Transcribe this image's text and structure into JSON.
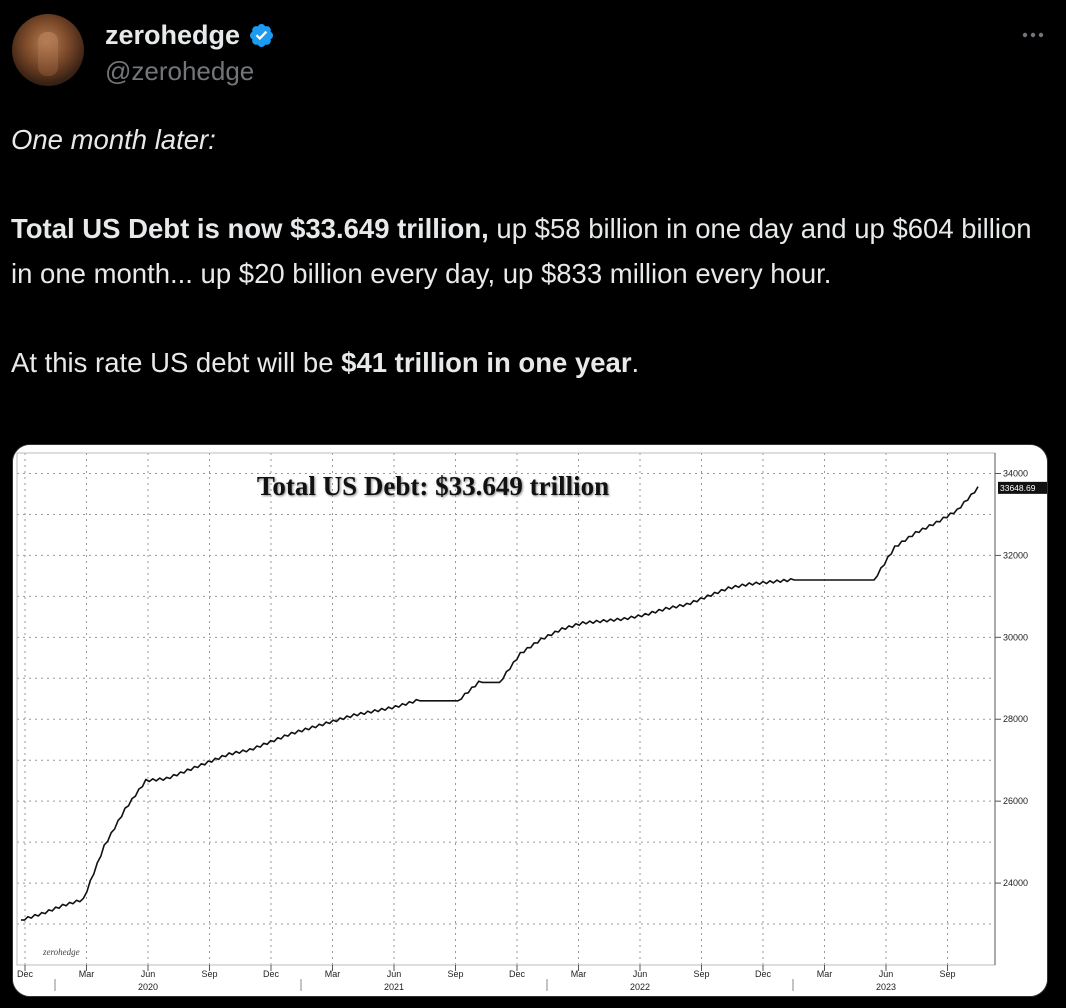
{
  "author": {
    "display_name": "zerohedge",
    "handle": "@zerohedge",
    "verified": true,
    "verified_color": "#1d9bf0",
    "more_icon": "more-horizontal-icon"
  },
  "tweet": {
    "line1": "One month later:",
    "para2_bold": "Total US Debt is now $33.649 trillion,",
    "para2_rest": " up $58 billion in one day and up $604 billion in one month... up $20 billion every day, up $833 million every hour.",
    "para3_start": "At this rate US debt will be ",
    "para3_bold": "$41 trillion in one year",
    "para3_end": "."
  },
  "chart_data": {
    "type": "line",
    "title": "Total US Debt: $33.649 trillion",
    "watermark": "zerohedge",
    "last_value_label": "33648.69",
    "y_ticks": [
      "34000",
      "32000",
      "30000",
      "28000",
      "26000",
      "24000"
    ],
    "y_tick_values": [
      34000,
      32000,
      30000,
      28000,
      26000,
      24000
    ],
    "ylim": [
      22000,
      34500
    ],
    "x_ticks": [
      "Dec",
      "Mar",
      "Jun",
      "Sep",
      "Dec",
      "Mar",
      "Jun",
      "Sep",
      "Dec",
      "Mar",
      "Jun",
      "Sep",
      "Dec",
      "Mar",
      "Jun",
      "Sep"
    ],
    "year_labels": [
      "2020",
      "2021",
      "2022",
      "2023"
    ],
    "series": [
      {
        "x": [
          "2019-12",
          "2020-01",
          "2020-02",
          "2020-03",
          "2020-04",
          "2020-05",
          "2020-06",
          "2020-07",
          "2020-08",
          "2020-09",
          "2020-10",
          "2020-11",
          "2020-12",
          "2021-01",
          "2021-02",
          "2021-03",
          "2021-04",
          "2021-05",
          "2021-06",
          "2021-07",
          "2021-08",
          "2021-09",
          "2021-10",
          "2021-11",
          "2021-12",
          "2022-01",
          "2022-02",
          "2022-03",
          "2022-04",
          "2022-05",
          "2022-06",
          "2022-07",
          "2022-08",
          "2022-09",
          "2022-10",
          "2022-11",
          "2022-12",
          "2023-01",
          "2023-02",
          "2023-03",
          "2023-04",
          "2023-05",
          "2023-06",
          "2023-07",
          "2023-08",
          "2023-09",
          "2023-10"
        ],
        "values": [
          23100,
          23250,
          23450,
          23600,
          24900,
          25800,
          26500,
          26550,
          26750,
          26950,
          27150,
          27250,
          27450,
          27650,
          27800,
          27950,
          28100,
          28200,
          28300,
          28450,
          28450,
          28450,
          28900,
          28900,
          29600,
          29950,
          30200,
          30350,
          30400,
          30450,
          30550,
          30700,
          30800,
          31000,
          31200,
          31300,
          31350,
          31400,
          31400,
          31400,
          31400,
          31400,
          32200,
          32550,
          32800,
          33100,
          33649
        ]
      }
    ]
  }
}
